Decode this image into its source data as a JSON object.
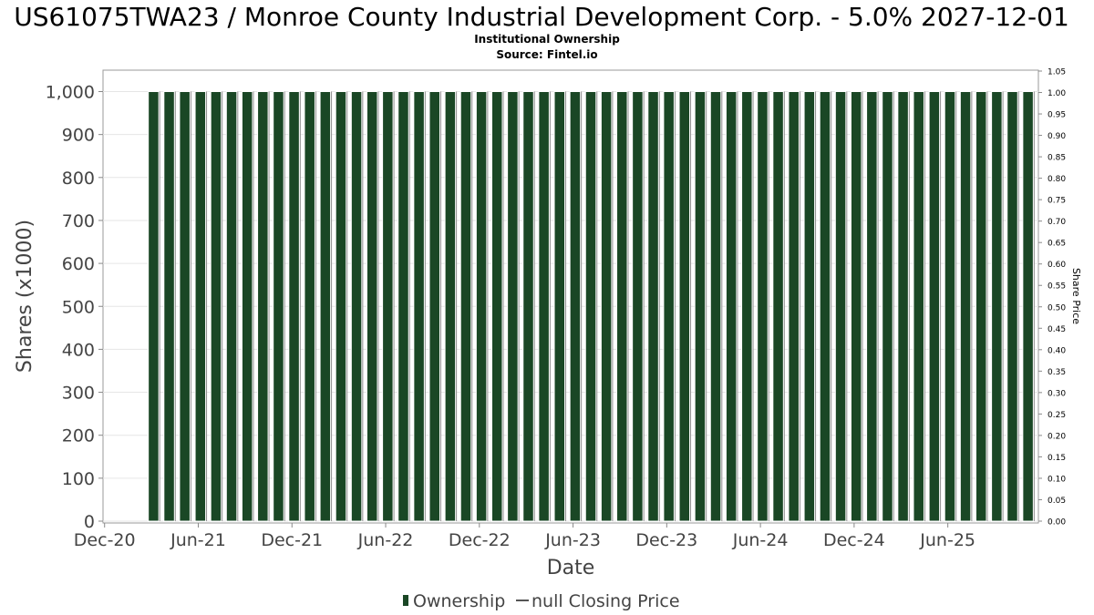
{
  "chart_data": {
    "type": "bar",
    "title": "US61075TWA23 / Monroe County Industrial Development Corp. - 5.0% 2027-12-01",
    "subtitle": "Institutional Ownership",
    "source": "Source: Fintel.io",
    "xlabel": "Date",
    "ylabel": "Shares (x1000)",
    "y2label": "Share Price",
    "x_start": "Dec-20",
    "x_tick_labels": [
      "Dec-20",
      "Jun-21",
      "Dec-21",
      "Jun-22",
      "Dec-22",
      "Jun-23",
      "Dec-23",
      "Jun-24",
      "Dec-24",
      "Jun-25"
    ],
    "x_tick_months": [
      0,
      6,
      12,
      18,
      24,
      30,
      36,
      42,
      48,
      54
    ],
    "x_range_months": [
      -0.1,
      59.8
    ],
    "ylim": [
      0,
      1000
    ],
    "y_ticks": [
      "0",
      "100",
      "200",
      "300",
      "400",
      "500",
      "600",
      "700",
      "800",
      "900",
      "1,000"
    ],
    "y2lim": [
      0,
      1.05
    ],
    "y2_ticks": [
      "0.00",
      "0.05",
      "0.10",
      "0.15",
      "0.20",
      "0.25",
      "0.30",
      "0.35",
      "0.40",
      "0.45",
      "0.50",
      "0.55",
      "0.60",
      "0.65",
      "0.70",
      "0.75",
      "0.80",
      "0.85",
      "0.90",
      "0.95",
      "1.00",
      "1.05"
    ],
    "bars": {
      "first_month": 2.8,
      "count": 57,
      "value": 1000
    },
    "series": [
      {
        "name": "Ownership",
        "color": "#1a4725"
      },
      {
        "name": "null Closing Price",
        "color": "#555555"
      }
    ],
    "grid": true,
    "legend": "bottom-center"
  }
}
